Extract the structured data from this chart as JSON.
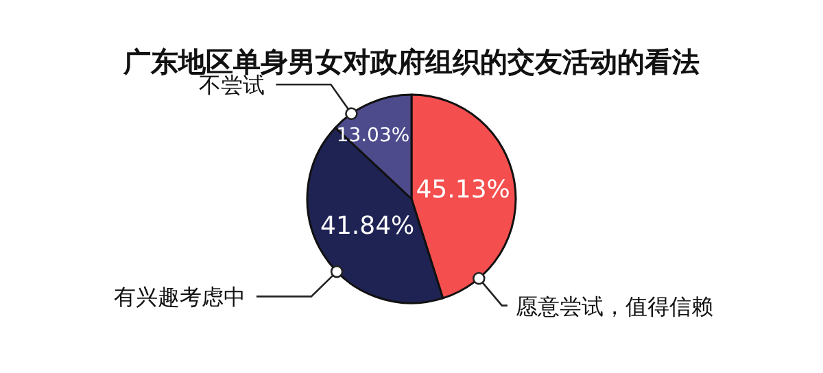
{
  "chart_data": {
    "type": "pie",
    "title": "广东地区单身男女对政府组织的交友活动的看法",
    "categories": [
      "愿意尝试，值得信赖",
      "有兴趣考虑中",
      "不尝试"
    ],
    "values": [
      45.13,
      41.84,
      13.03
    ],
    "colors": [
      "#f44e4e",
      "#1f2354",
      "#4d4b8c"
    ],
    "value_labels": [
      "45.13%",
      "41.84%",
      "13.03%"
    ]
  }
}
